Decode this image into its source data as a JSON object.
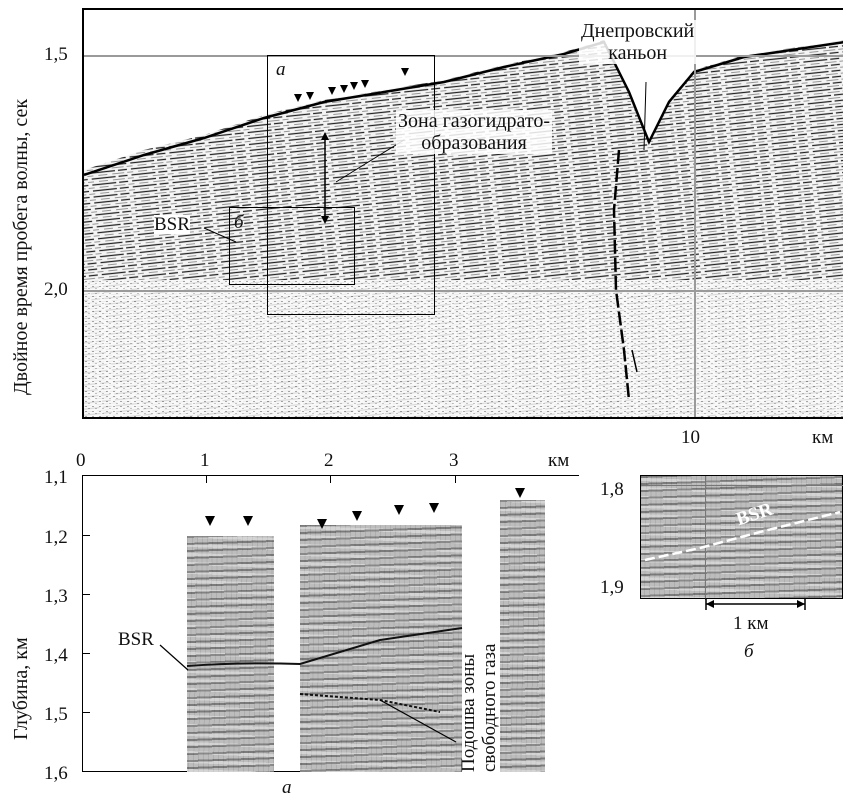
{
  "top_panel": {
    "y_axis_label": "Двойное время пробега волны, сек",
    "y_ticks": [
      "1,5",
      "2,0"
    ],
    "x_ticks": [
      "10"
    ],
    "x_unit": "км",
    "label_a": "а",
    "label_b": "б",
    "bsr_label": "BSR",
    "canyon_label_line1": "Днепровский",
    "canyon_label_line2": "каньон",
    "zone_label_line1": "Зона газогидрато-",
    "zone_label_line2": "образования"
  },
  "panel_a": {
    "x_ticks": [
      "0",
      "1",
      "2",
      "3"
    ],
    "x_unit": "км",
    "y_axis_label": "Глубина, км",
    "y_ticks": [
      "1,1",
      "1,2",
      "1,3",
      "1,4",
      "1,5",
      "1,6"
    ],
    "bsr_label": "BSR",
    "gas_label_line1": "Подошва зоны",
    "gas_label_line2": "свободного газа",
    "caption": "а"
  },
  "panel_b": {
    "y_ticks": [
      "1,8",
      "1,9"
    ],
    "bsr_label": "BSR",
    "scale_label": "1 км",
    "caption": "б"
  }
}
